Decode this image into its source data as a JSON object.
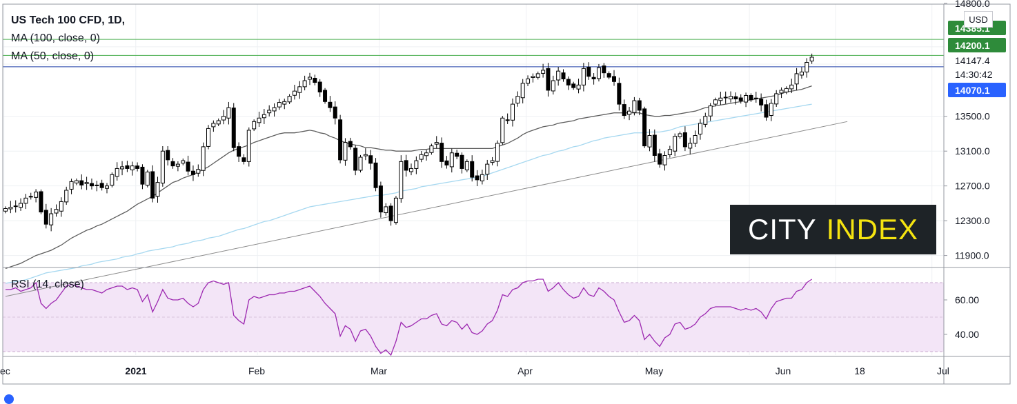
{
  "legend": {
    "title": "US Tech 100 CFD, 1D, ",
    "ma100": "MA (100, close, 0)",
    "ma50": "MA (50, close, 0)",
    "rsi": "RSI (14, close)"
  },
  "logo": {
    "white": "CITY",
    "yellow": "INDEX"
  },
  "currency": "USD",
  "colors": {
    "up": "#ffffff",
    "down": "#000000",
    "candle_border": "#000000",
    "ma50": "#5d5d5d",
    "ma100": "#a6d8f0",
    "trendline": "#8a8a8a",
    "green_line": "#4caf50",
    "price_line": "#1e3fa8",
    "rsi": "#9c27b0",
    "rsi_band": "#f3e5f7",
    "badge_green": "#2e8b3a",
    "badge_blue": "#2962ff"
  },
  "chart_data": [
    {
      "type": "candlestick",
      "title": "US Tech 100 CFD, 1D",
      "y_ticks": [
        "14800.0",
        "13500.0",
        "13100.0",
        "12700.0",
        "12300.0",
        "11900.0"
      ],
      "x_ticks": [
        "ec",
        "2021",
        "Feb",
        "Mar",
        "Apr",
        "May",
        "Jun",
        "18",
        "Jul"
      ],
      "ylim": [
        11770,
        14790
      ],
      "price_labels": [
        {
          "text": "14385.1",
          "value": 14385.1,
          "style": "green"
        },
        {
          "text": "14200.1",
          "value": 14200.1,
          "style": "green"
        },
        {
          "text": "14147.4",
          "value": 14147.4,
          "style": "plain"
        },
        {
          "text": "14:30:42",
          "value": 14147.4,
          "style": "countdown"
        },
        {
          "text": "14070.1",
          "value": 14070.1,
          "style": "blue"
        }
      ],
      "horizontal_lines": [
        {
          "value": 14385.1,
          "color": "green"
        },
        {
          "value": 14200.1,
          "color": "green"
        },
        {
          "value": 14070.1,
          "color": "blue"
        }
      ],
      "closes": [
        12440,
        12455,
        12470,
        12500,
        12560,
        12580,
        12630,
        12400,
        12260,
        12380,
        12430,
        12520,
        12650,
        12750,
        12760,
        12710,
        12740,
        12700,
        12710,
        12680,
        12700,
        12830,
        12900,
        12920,
        12900,
        12930,
        12900,
        12720,
        12860,
        12560,
        12740,
        13100,
        13000,
        12930,
        12950,
        12990,
        12870,
        12830,
        12890,
        13150,
        13360,
        13420,
        13450,
        13500,
        13600,
        13140,
        13040,
        12980,
        13340,
        13440,
        13480,
        13520,
        13570,
        13600,
        13660,
        13670,
        13730,
        13790,
        13840,
        13910,
        13950,
        13890,
        13780,
        13670,
        13600,
        13480,
        13000,
        13200,
        13150,
        12880,
        13030,
        13060,
        12960,
        12680,
        12400,
        12460,
        12300,
        12560,
        12980,
        12880,
        12900,
        12990,
        13060,
        13080,
        13160,
        13200,
        12980,
        12940,
        13080,
        13040,
        12900,
        12980,
        12800,
        12770,
        12830,
        12950,
        12990,
        13190,
        13480,
        13460,
        13640,
        13730,
        13880,
        13930,
        13960,
        13990,
        14030,
        13800,
        13910,
        14020,
        13930,
        13860,
        13830,
        13860,
        14050,
        13960,
        13930,
        14060,
        14000,
        13950,
        13900,
        13640,
        13510,
        13560,
        13680,
        13570,
        13160,
        13280,
        13050,
        12950,
        13050,
        13120,
        13270,
        13300,
        13150,
        13190,
        13280,
        13420,
        13500,
        13620,
        13690,
        13710,
        13720,
        13730,
        13700,
        13680,
        13740,
        13690,
        13710,
        13630,
        13490,
        13650,
        13760,
        13800,
        13820,
        13860,
        13990,
        14010,
        14120,
        14180
      ],
      "ma50": [
        11750,
        11770,
        11790,
        11810,
        11840,
        11870,
        11900,
        11920,
        11940,
        11960,
        11990,
        12020,
        12060,
        12100,
        12130,
        12160,
        12190,
        12210,
        12240,
        12260,
        12290,
        12320,
        12350,
        12380,
        12410,
        12450,
        12490,
        12520,
        12550,
        12580,
        12620,
        12660,
        12700,
        12740,
        12760,
        12790,
        12810,
        12830,
        12860,
        12890,
        12920,
        12960,
        13000,
        13040,
        13080,
        13110,
        13130,
        13150,
        13170,
        13200,
        13220,
        13240,
        13260,
        13280,
        13300,
        13310,
        13310,
        13310,
        13320,
        13330,
        13340,
        13330,
        13310,
        13300,
        13270,
        13250,
        13220,
        13200,
        13180,
        13170,
        13160,
        13140,
        13140,
        13130,
        13120,
        13110,
        13110,
        13100,
        13100,
        13100,
        13100,
        13110,
        13120,
        13120,
        13130,
        13130,
        13130,
        13130,
        13130,
        13130,
        13130,
        13130,
        13130,
        13130,
        13130,
        13130,
        13130,
        13150,
        13170,
        13190,
        13220,
        13250,
        13290,
        13320,
        13340,
        13360,
        13380,
        13390,
        13400,
        13420,
        13430,
        13440,
        13450,
        13470,
        13480,
        13490,
        13500,
        13510,
        13520,
        13530,
        13540,
        13540,
        13540,
        13540,
        13540,
        13540,
        13520,
        13510,
        13500,
        13500,
        13510,
        13510,
        13520,
        13530,
        13540,
        13550,
        13560,
        13580,
        13600,
        13610,
        13620,
        13630,
        13640,
        13650,
        13660,
        13670,
        13680,
        13690,
        13700,
        13710,
        13720,
        13730,
        13740,
        13760,
        13780,
        13790,
        13800,
        13810,
        13830,
        13850
      ],
      "ma100": [
        11580,
        11590,
        11600,
        11610,
        11620,
        11640,
        11660,
        11680,
        11700,
        11710,
        11720,
        11730,
        11740,
        11750,
        11760,
        11780,
        11790,
        11800,
        11820,
        11830,
        11840,
        11850,
        11860,
        11880,
        11890,
        11900,
        11920,
        11930,
        11950,
        11960,
        11970,
        11980,
        11990,
        12000,
        12020,
        12030,
        12040,
        12060,
        12070,
        12080,
        12100,
        12110,
        12120,
        12140,
        12160,
        12180,
        12200,
        12210,
        12230,
        12250,
        12270,
        12290,
        12300,
        12320,
        12340,
        12360,
        12380,
        12400,
        12420,
        12440,
        12460,
        12470,
        12480,
        12490,
        12500,
        12510,
        12520,
        12530,
        12540,
        12550,
        12560,
        12570,
        12580,
        12590,
        12590,
        12600,
        12610,
        12620,
        12640,
        12650,
        12660,
        12670,
        12690,
        12700,
        12710,
        12720,
        12730,
        12740,
        12750,
        12760,
        12770,
        12780,
        12790,
        12800,
        12810,
        12830,
        12850,
        12870,
        12890,
        12910,
        12930,
        12950,
        12970,
        12990,
        13010,
        13030,
        13050,
        13060,
        13080,
        13100,
        13110,
        13130,
        13150,
        13160,
        13180,
        13200,
        13220,
        13230,
        13250,
        13260,
        13270,
        13280,
        13290,
        13300,
        13310,
        13310,
        13310,
        13320,
        13320,
        13320,
        13330,
        13340,
        13360,
        13380,
        13390,
        13400,
        13410,
        13420,
        13430,
        13440,
        13450,
        13460,
        13470,
        13480,
        13490,
        13500,
        13510,
        13520,
        13530,
        13540,
        13550,
        13560,
        13570,
        13580,
        13590,
        13600,
        13610,
        13620,
        13630,
        13640
      ],
      "trendline": [
        {
          "x": 0,
          "y": 11430
        },
        {
          "x": 166,
          "y": 13440
        }
      ]
    },
    {
      "type": "line",
      "title": "RSI (14, close)",
      "y_ticks": [
        "60.00",
        "40.00"
      ],
      "ylim": [
        28,
        78
      ],
      "bands": [
        70,
        30
      ],
      "midline": 50,
      "rsi": [
        66,
        66,
        67,
        65,
        66,
        67,
        70,
        58,
        55,
        58,
        60,
        64,
        68,
        69,
        68,
        67,
        66,
        66,
        65,
        64,
        66,
        67,
        68,
        68,
        66,
        67,
        66,
        59,
        63,
        53,
        59,
        66,
        61,
        60,
        60,
        61,
        58,
        56,
        58,
        66,
        70,
        71,
        70,
        69,
        70,
        51,
        48,
        46,
        60,
        62,
        61,
        62,
        63,
        63,
        64,
        64,
        65,
        65,
        66,
        67,
        68,
        65,
        62,
        58,
        55,
        52,
        39,
        45,
        43,
        36,
        42,
        43,
        39,
        33,
        29,
        31,
        28,
        36,
        47,
        44,
        45,
        47,
        49,
        49,
        51,
        52,
        46,
        45,
        48,
        47,
        43,
        46,
        41,
        40,
        42,
        46,
        48,
        54,
        63,
        62,
        66,
        67,
        70,
        71,
        71,
        72,
        72,
        65,
        67,
        70,
        66,
        63,
        61,
        62,
        67,
        63,
        62,
        67,
        65,
        62,
        60,
        53,
        47,
        48,
        51,
        48,
        37,
        40,
        36,
        33,
        38,
        40,
        46,
        47,
        43,
        44,
        46,
        50,
        52,
        55,
        56,
        56,
        56,
        56,
        55,
        54,
        55,
        54,
        55,
        53,
        49,
        55,
        59,
        60,
        61,
        61,
        65,
        66,
        70,
        72
      ]
    }
  ]
}
